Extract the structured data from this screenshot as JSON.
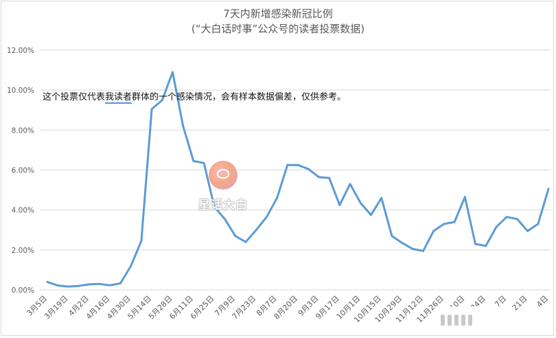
{
  "chart_data": {
    "type": "line",
    "title": "7天内新增感染新冠比例",
    "subtitle": "(“大白话时事”公众号的读者投票数据)",
    "xlabel": "",
    "ylabel": "",
    "ylim": [
      0,
      0.12
    ],
    "y_ticks": [
      "0.00%",
      "2.00%",
      "4.00%",
      "6.00%",
      "8.00%",
      "10.00%",
      "12.00%"
    ],
    "x_tick_labels": [
      "3月5日",
      "3月19日",
      "4月2日",
      "4月16日",
      "4月30日",
      "5月14日",
      "5月28日",
      "6月11日",
      "6月25日",
      "7月9日",
      "7月23日",
      "8月7日",
      "8月20日",
      "9月3日",
      "9月17日",
      "10月1日",
      "10月15日",
      "10月29日",
      "11月12日",
      "11月26日",
      "10日",
      "24日",
      "7日",
      "21日",
      "4日"
    ],
    "grid": true,
    "legend": "none",
    "line_color": "#5b9bd5",
    "series": [
      {
        "values": [
          0.4,
          0.22,
          0.17,
          0.2,
          0.28,
          0.3,
          0.23,
          0.33,
          1.2,
          2.45,
          9.05,
          9.5,
          10.9,
          8.2,
          6.45,
          6.35,
          4.15,
          3.55,
          2.7,
          2.4,
          3.0,
          3.65,
          4.6,
          6.25,
          6.25,
          6.05,
          5.65,
          5.6,
          4.25,
          5.3,
          4.35,
          3.75,
          4.6,
          2.7,
          2.35,
          2.05,
          1.95,
          2.95,
          3.3,
          3.4,
          4.65,
          2.3,
          2.2,
          3.15,
          3.65,
          3.55,
          2.95,
          3.3,
          5.05
        ]
      }
    ]
  },
  "annotation": {
    "before": "这个投票仅代表",
    "underlined": "我读者",
    "after": "群体的一个感染情况，会有样本数据偏差，仅供参考。"
  },
  "watermark": {
    "text": "星话大白"
  }
}
